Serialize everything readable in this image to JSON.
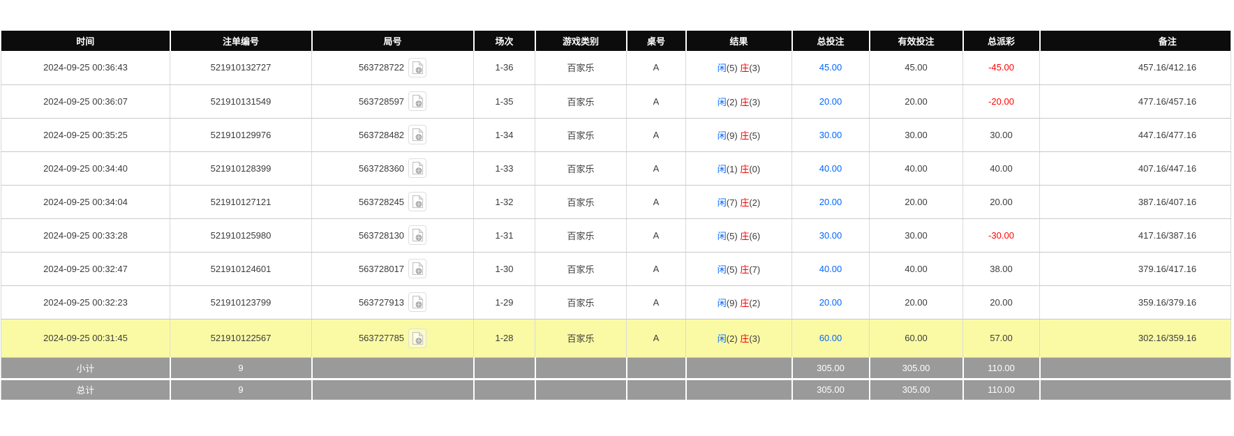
{
  "colors": {
    "header_bg": "#0c0c0c",
    "header_text": "#ffffff",
    "bet_blue": "#0066ff",
    "player_blue": "#0066ff",
    "banker_red": "#f00000",
    "negative_red": "#ff0000",
    "highlight_yellow": "#fafaa5",
    "summary_gray": "#9a9a9a",
    "grid_line": "#d9d9d9"
  },
  "icons": {
    "round_action": "video-replay-icon"
  },
  "table": {
    "columns": [
      {
        "key": "time",
        "label": "时间"
      },
      {
        "key": "bet_no",
        "label": "注单编号"
      },
      {
        "key": "round_no",
        "label": "局号"
      },
      {
        "key": "session",
        "label": "场次"
      },
      {
        "key": "game_type",
        "label": "游戏类别"
      },
      {
        "key": "table_no",
        "label": "桌号"
      },
      {
        "key": "result",
        "label": "结果"
      },
      {
        "key": "total_bet",
        "label": "总投注"
      },
      {
        "key": "valid_bet",
        "label": "有效投注"
      },
      {
        "key": "total_payout",
        "label": "总派彩"
      },
      {
        "key": "remark",
        "label": "备注"
      }
    ],
    "rows": [
      {
        "time": "2024-09-25 00:36:43",
        "bet_no": "521910132727",
        "round_no": "563728722",
        "session": "1-36",
        "game_type": "百家乐",
        "table_no": "A",
        "result": {
          "player_label": "闲",
          "player_value": "(5)",
          "banker_label": "庄",
          "banker_value": "(3)"
        },
        "total_bet": "45.00",
        "valid_bet": "45.00",
        "total_payout": "-45.00",
        "remark": "457.16/412.16",
        "highlight": false
      },
      {
        "time": "2024-09-25 00:36:07",
        "bet_no": "521910131549",
        "round_no": "563728597",
        "session": "1-35",
        "game_type": "百家乐",
        "table_no": "A",
        "result": {
          "player_label": "闲",
          "player_value": "(2)",
          "banker_label": "庄",
          "banker_value": "(3)"
        },
        "total_bet": "20.00",
        "valid_bet": "20.00",
        "total_payout": "-20.00",
        "remark": "477.16/457.16",
        "highlight": false
      },
      {
        "time": "2024-09-25 00:35:25",
        "bet_no": "521910129976",
        "round_no": "563728482",
        "session": "1-34",
        "game_type": "百家乐",
        "table_no": "A",
        "result": {
          "player_label": "闲",
          "player_value": "(9)",
          "banker_label": "庄",
          "banker_value": "(5)"
        },
        "total_bet": "30.00",
        "valid_bet": "30.00",
        "total_payout": "30.00",
        "remark": "447.16/477.16",
        "highlight": false
      },
      {
        "time": "2024-09-25 00:34:40",
        "bet_no": "521910128399",
        "round_no": "563728360",
        "session": "1-33",
        "game_type": "百家乐",
        "table_no": "A",
        "result": {
          "player_label": "闲",
          "player_value": "(1)",
          "banker_label": "庄",
          "banker_value": "(0)"
        },
        "total_bet": "40.00",
        "valid_bet": "40.00",
        "total_payout": "40.00",
        "remark": "407.16/447.16",
        "highlight": false
      },
      {
        "time": "2024-09-25 00:34:04",
        "bet_no": "521910127121",
        "round_no": "563728245",
        "session": "1-32",
        "game_type": "百家乐",
        "table_no": "A",
        "result": {
          "player_label": "闲",
          "player_value": "(7)",
          "banker_label": "庄",
          "banker_value": "(2)"
        },
        "total_bet": "20.00",
        "valid_bet": "20.00",
        "total_payout": "20.00",
        "remark": "387.16/407.16",
        "highlight": false
      },
      {
        "time": "2024-09-25 00:33:28",
        "bet_no": "521910125980",
        "round_no": "563728130",
        "session": "1-31",
        "game_type": "百家乐",
        "table_no": "A",
        "result": {
          "player_label": "闲",
          "player_value": "(5)",
          "banker_label": "庄",
          "banker_value": "(6)"
        },
        "total_bet": "30.00",
        "valid_bet": "30.00",
        "total_payout": "-30.00",
        "remark": "417.16/387.16",
        "highlight": false
      },
      {
        "time": "2024-09-25 00:32:47",
        "bet_no": "521910124601",
        "round_no": "563728017",
        "session": "1-30",
        "game_type": "百家乐",
        "table_no": "A",
        "result": {
          "player_label": "闲",
          "player_value": "(5)",
          "banker_label": "庄",
          "banker_value": "(7)"
        },
        "total_bet": "40.00",
        "valid_bet": "40.00",
        "total_payout": "38.00",
        "remark": "379.16/417.16",
        "highlight": false
      },
      {
        "time": "2024-09-25 00:32:23",
        "bet_no": "521910123799",
        "round_no": "563727913",
        "session": "1-29",
        "game_type": "百家乐",
        "table_no": "A",
        "result": {
          "player_label": "闲",
          "player_value": "(9)",
          "banker_label": "庄",
          "banker_value": "(2)"
        },
        "total_bet": "20.00",
        "valid_bet": "20.00",
        "total_payout": "20.00",
        "remark": "359.16/379.16",
        "highlight": false
      },
      {
        "time": "2024-09-25 00:31:45",
        "bet_no": "521910122567",
        "round_no": "563727785",
        "session": "1-28",
        "game_type": "百家乐",
        "table_no": "A",
        "result": {
          "player_label": "闲",
          "player_value": "(2)",
          "banker_label": "庄",
          "banker_value": "(3)"
        },
        "total_bet": "60.00",
        "valid_bet": "60.00",
        "total_payout": "57.00",
        "remark": "302.16/359.16",
        "highlight": true
      }
    ],
    "summary": [
      {
        "key": "subtotal",
        "label": "小计",
        "count": "9",
        "total_bet": "305.00",
        "valid_bet": "305.00",
        "total_payout": "110.00"
      },
      {
        "key": "grand-total",
        "label": "总计",
        "count": "9",
        "total_bet": "305.00",
        "valid_bet": "305.00",
        "total_payout": "110.00"
      }
    ]
  }
}
